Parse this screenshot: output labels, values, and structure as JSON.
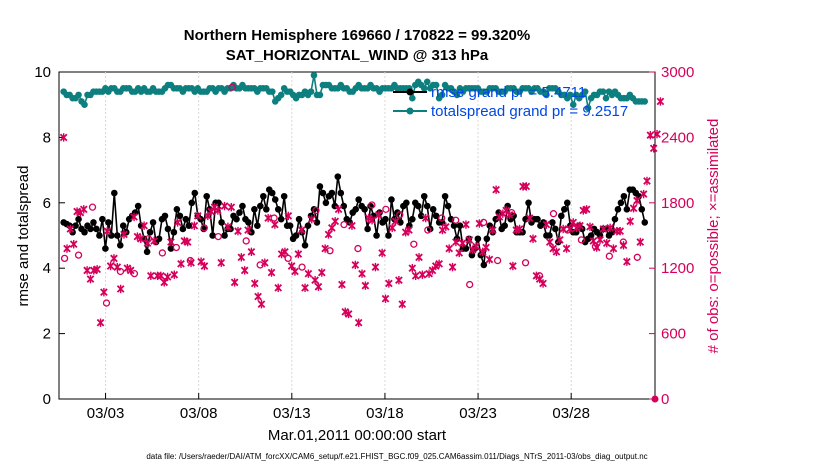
{
  "chart_data": {
    "type": "line",
    "title": "Northern Hemisphere 169660 / 170822 = 99.320%",
    "subtitle": "SAT_HORIZONTAL_WIND @ 313 hPa",
    "xlabel": "Mar.01,2011 00:00:00 start",
    "ylabel_left": "rmse and totalspread",
    "ylabel_right": "# of obs: o=possible; ×=assimilated",
    "footnote": "data file: /Users/raeder/DAI/ATM_forcXX/CAM6_setup/f.e21.FHIST_BGC.f09_025.CAM6assim.011/Diags_NTrS_2011-03/obs_diag_output.nc",
    "xlim": [
      0.5,
      32.5
    ],
    "ylim_left": [
      0,
      10
    ],
    "ylim_right": [
      0,
      3000
    ],
    "x_ticks": [
      {
        "value": 3,
        "label": "03/03"
      },
      {
        "value": 8,
        "label": "03/08"
      },
      {
        "value": 13,
        "label": "03/13"
      },
      {
        "value": 18,
        "label": "03/18"
      },
      {
        "value": 23,
        "label": "03/23"
      },
      {
        "value": 28,
        "label": "03/28"
      }
    ],
    "y_ticks_left": [
      0,
      2,
      4,
      6,
      8,
      10
    ],
    "y_ticks_right": [
      0,
      600,
      1200,
      1800,
      2400,
      3000
    ],
    "x_step": 0.25,
    "x_start": 0.75,
    "legend": [
      {
        "name": "rmse grand pr = 5.4711",
        "color": "#000000"
      },
      {
        "name": "totalspread grand pr = 9.2517",
        "color": "#0e7f7f"
      }
    ],
    "series": [
      {
        "name": "rmse",
        "axis": "left",
        "color": "#000000",
        "values": [
          5.4,
          5.35,
          5.3,
          5.1,
          5.3,
          5.5,
          5.2,
          5.1,
          5.3,
          5.2,
          5.4,
          5.2,
          5.0,
          5.5,
          4.6,
          5.4,
          5.0,
          6.3,
          5.0,
          4.7,
          5.3,
          5.1,
          5.5,
          5.6,
          5.7,
          5.9,
          5.3,
          4.9,
          4.5,
          5.1,
          5.4,
          4.8,
          4.9,
          5.5,
          5.6,
          5.2,
          4.6,
          5.1,
          5.8,
          5.6,
          5.2,
          5.5,
          5.3,
          6.0,
          6.3,
          5.6,
          5.5,
          5.2,
          6.2,
          5.8,
          5.0,
          6.0,
          6.0,
          5.4,
          5.0,
          5.2,
          5.2,
          5.6,
          5.5,
          5.7,
          5.9,
          5.5,
          5.4,
          5.1,
          5.8,
          5.3,
          5.9,
          6.2,
          5.8,
          6.4,
          6.3,
          6.1,
          5.8,
          5.5,
          6.2,
          5.3,
          5.3,
          4.9,
          5.0,
          5.5,
          5.1,
          4.7,
          5.3,
          5.6,
          5.8,
          5.4,
          6.5,
          6.3,
          6.0,
          6.2,
          6.3,
          5.9,
          6.8,
          6.3,
          5.9,
          5.5,
          5.4,
          5.7,
          5.8,
          6.1,
          5.9,
          5.8,
          5.2,
          5.9,
          5.6,
          5.0,
          5.7,
          5.4,
          5.5,
          5.0,
          6.1,
          5.5,
          5.7,
          5.4,
          5.9,
          6.0,
          5.3,
          5.5,
          6.0,
          5.9,
          5.6,
          6.2,
          5.9,
          5.2,
          5.8,
          5.6,
          5.4,
          5.4,
          6.2,
          5.9,
          5.5,
          5.3,
          4.9,
          5.3,
          4.6,
          4.6,
          4.9,
          4.4,
          4.6,
          4.9,
          4.4,
          4.1,
          4.9,
          5.3,
          5.1,
          5.5,
          5.7,
          5.2,
          5.3,
          5.9,
          5.5,
          5.6,
          5.1,
          5.1,
          5.1,
          5.5,
          6.0,
          5.4,
          5.5,
          5.5,
          5.3,
          5.4,
          5.0,
          5.0,
          5.4,
          5.2,
          4.8,
          5.6,
          5.8,
          6.0,
          5.3,
          5.1,
          5.1,
          5.3,
          5.2,
          4.8,
          4.9,
          5.0,
          5.2,
          5.1,
          5.0,
          5.2,
          5.2,
          5.0,
          5.1,
          5.5,
          5.8,
          6.0,
          6.2,
          5.8,
          6.4,
          6.4,
          6.3,
          6.2,
          5.8,
          5.4
        ],
        "x_start": 0.75,
        "x_step": 0.16
      },
      {
        "name": "totalspread",
        "axis": "left",
        "color": "#0e7f7f",
        "values": [
          9.4,
          9.3,
          9.3,
          9.2,
          9.2,
          9.3,
          9.1,
          9.0,
          9.3,
          9.3,
          9.4,
          9.4,
          9.4,
          9.4,
          9.5,
          9.4,
          9.5,
          9.5,
          9.4,
          9.4,
          9.5,
          9.5,
          9.5,
          9.4,
          9.4,
          9.5,
          9.4,
          9.5,
          9.4,
          9.4,
          9.5,
          9.4,
          9.4,
          9.4,
          9.5,
          9.6,
          9.6,
          9.5,
          9.5,
          9.5,
          9.4,
          9.5,
          9.5,
          9.5,
          9.4,
          9.5,
          9.4,
          9.4,
          9.4,
          9.5,
          9.5,
          9.4,
          9.5,
          9.5,
          9.4,
          9.5,
          9.5,
          9.6,
          9.5,
          9.5,
          9.6,
          9.5,
          9.5,
          9.5,
          9.5,
          9.4,
          9.5,
          9.5,
          9.5,
          9.4,
          9.4,
          9.1,
          9.2,
          9.3,
          9.5,
          9.4,
          9.4,
          9.3,
          9.2,
          9.3,
          9.3,
          9.4,
          9.3,
          9.4,
          9.9,
          9.3,
          9.3,
          9.6,
          9.6,
          9.6,
          9.5,
          9.5,
          9.5,
          9.6,
          9.5,
          9.5,
          9.4,
          9.4,
          9.5,
          9.6,
          9.5,
          9.5,
          9.5,
          9.6,
          9.5,
          9.5,
          9.4,
          9.5,
          9.5,
          9.5,
          9.5,
          9.6,
          9.5,
          9.5,
          9.5,
          9.5,
          9.5,
          9.2,
          9.6,
          9.7,
          9.6,
          9.5,
          9.7,
          9.5,
          9.6,
          9.6,
          9.2,
          9.3,
          9.6,
          9.5,
          9.5,
          9.4,
          9.3,
          9.5,
          9.4,
          9.5,
          9.5,
          9.5,
          9.5,
          9.5,
          9.4,
          9.4,
          9.4,
          9.5,
          9.5,
          9.5,
          9.4,
          9.4,
          9.4,
          9.5,
          9.5,
          9.5,
          9.4,
          9.4,
          9.5,
          9.5,
          9.5,
          9.4,
          9.5,
          9.5,
          9.4,
          9.4,
          9.3,
          9.5,
          9.5,
          9.5,
          9.4,
          9.3,
          9.3,
          9.2,
          9.3,
          9.0,
          9.3,
          9.2,
          9.3,
          9.4,
          8.9,
          9.2,
          9.3,
          9.3,
          9.4,
          9.4,
          9.2,
          9.4,
          9.3,
          9.4,
          9.3,
          9.2,
          9.2,
          9.2,
          9.3,
          9.2,
          9.1,
          9.1,
          9.1,
          9.1
        ],
        "x_start": 0.75,
        "x_step": 0.16
      },
      {
        "name": "obs assimilated",
        "axis": "right",
        "color": "#d6005b",
        "marker": "x",
        "values": [
          2400,
          1380,
          1560,
          1420,
          1720,
          1710,
          1740,
          1180,
          1100,
          1180,
          1190,
          700,
          980,
          1540,
          1220,
          1290,
          1210,
          1010,
          1510,
          1200,
          1180,
          1670,
          1490,
          1470,
          1590,
          1430,
          1130,
          1450,
          1130,
          1130,
          1070,
          1120,
          1440,
          1140,
          1620,
          1240,
          1450,
          1440,
          1250,
          1590,
          1680,
          1260,
          1220,
          1680,
          1720,
          1760,
          1730,
          1250,
          1770,
          1580,
          1760,
          1070,
          1540,
          1300,
          1180,
          1550,
          1350,
          1060,
          940,
          870,
          1250,
          1660,
          1160,
          1600,
          1020,
          1330,
          1350,
          1680,
          1220,
          1170,
          1330,
          1550,
          1020,
          1150,
          1650,
          1090,
          1030,
          1160,
          1380,
          1510,
          1570,
          1630,
          1740,
          1050,
          800,
          780,
          1590,
          1230,
          700,
          1150,
          1040,
          1660,
          1640,
          1210,
          1690,
          1340,
          920,
          1060,
          1570,
          1630,
          1090,
          870,
          1530,
          1550,
          1200,
          1130,
          1300,
          1140,
          1660,
          1150,
          1180,
          1220,
          1240,
          1550,
          1580,
          1380,
          1210,
          1440,
          1340,
          1430,
          1600,
          1460,
          1370,
          1400,
          1610,
          1350,
          1390,
          1280,
          1550,
          1920,
          1670,
          1700,
          1730,
          1690,
          1220,
          1550,
          1560,
          1950,
          1950,
          1660,
          1470,
          1130,
          1100,
          1060,
          1600,
          1440,
          1380,
          1350,
          1460,
          1560,
          1380,
          1560,
          1620,
          1570,
          1590,
          1730,
          1740,
          1580,
          1450,
          1390,
          1460,
          1560,
          1430,
          1570,
          1380,
          1540,
          1540,
          1410,
          1260,
          1630,
          1750,
          1820,
          1440,
          1880,
          2000,
          2420,
          2300,
          2430,
          2730
        ],
        "x_start": 0.75,
        "x_step": 0.18
      },
      {
        "name": "obs possible",
        "axis": "right",
        "color": "#d6005b",
        "marker": "o",
        "values": [
          1290,
          1320,
          1760,
          880,
          1170,
          1150,
          1470,
          1340,
          1390,
          1270,
          1570,
          1490,
          2860,
          1450,
          1230,
          1660,
          1290,
          1210,
          1730,
          1360,
          1600,
          1380,
          1780,
          1740,
          1690,
          1420,
          1550,
          1660,
          1640,
          1050,
          1620,
          1270,
          1710,
          1250,
          1130,
          1700,
          1550,
          1460,
          1400,
          1310,
          1440,
          1300
        ],
        "x_start": 0.8,
        "x_step": 0.75
      }
    ]
  }
}
